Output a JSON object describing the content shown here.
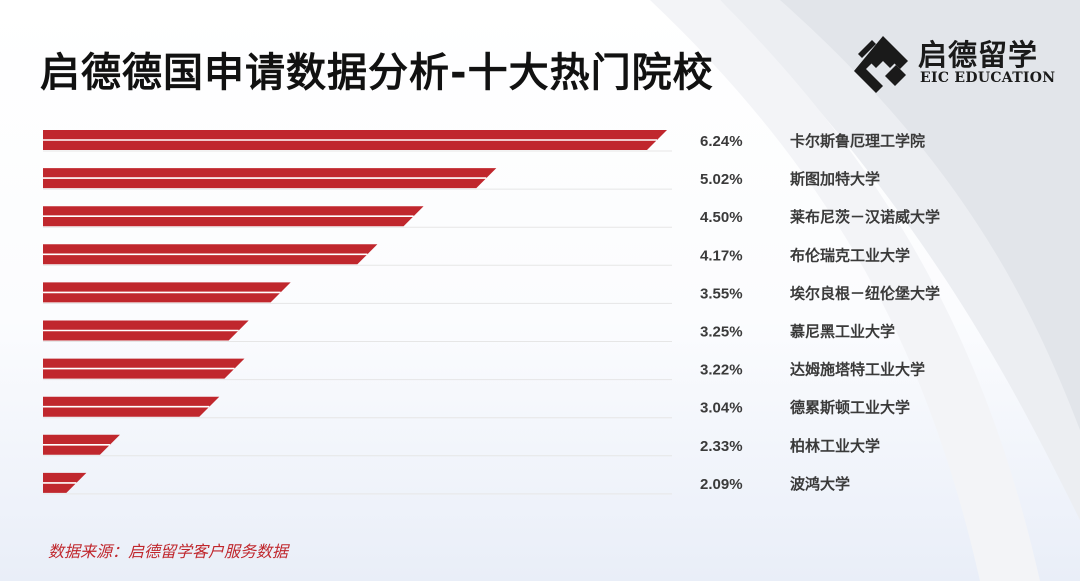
{
  "header": {
    "title": "启德德国申请数据分析-十大热门院校"
  },
  "logo": {
    "name_cn": "启德留学",
    "name_en": "EIC EDUCATION"
  },
  "colors": {
    "bar": "#c0272d",
    "text": "#3a3a3a",
    "source": "#c0272d"
  },
  "chart_data": {
    "type": "bar",
    "orientation": "horizontal",
    "categories": [
      "卡尔斯鲁厄理工学院",
      "斯图加特大学",
      "莱布尼茨－汉诺威大学",
      "布伦瑞克工业大学",
      "埃尔良根－纽伦堡大学",
      "慕尼黑工业大学",
      "达姆施塔特工业大学",
      "德累斯顿工业大学",
      "柏林工业大学",
      "波鸿大学"
    ],
    "values": [
      6.24,
      5.02,
      4.5,
      4.17,
      3.55,
      3.25,
      3.22,
      3.04,
      2.33,
      2.09
    ],
    "value_labels": [
      "6.24%",
      "5.02%",
      "4.50%",
      "4.17%",
      "3.55%",
      "3.25%",
      "3.22%",
      "3.04%",
      "2.33%",
      "2.09%"
    ],
    "unit": "%",
    "grid": false,
    "legend": "none"
  },
  "footer": {
    "source": "数据来源：启德留学客户服务数据"
  }
}
